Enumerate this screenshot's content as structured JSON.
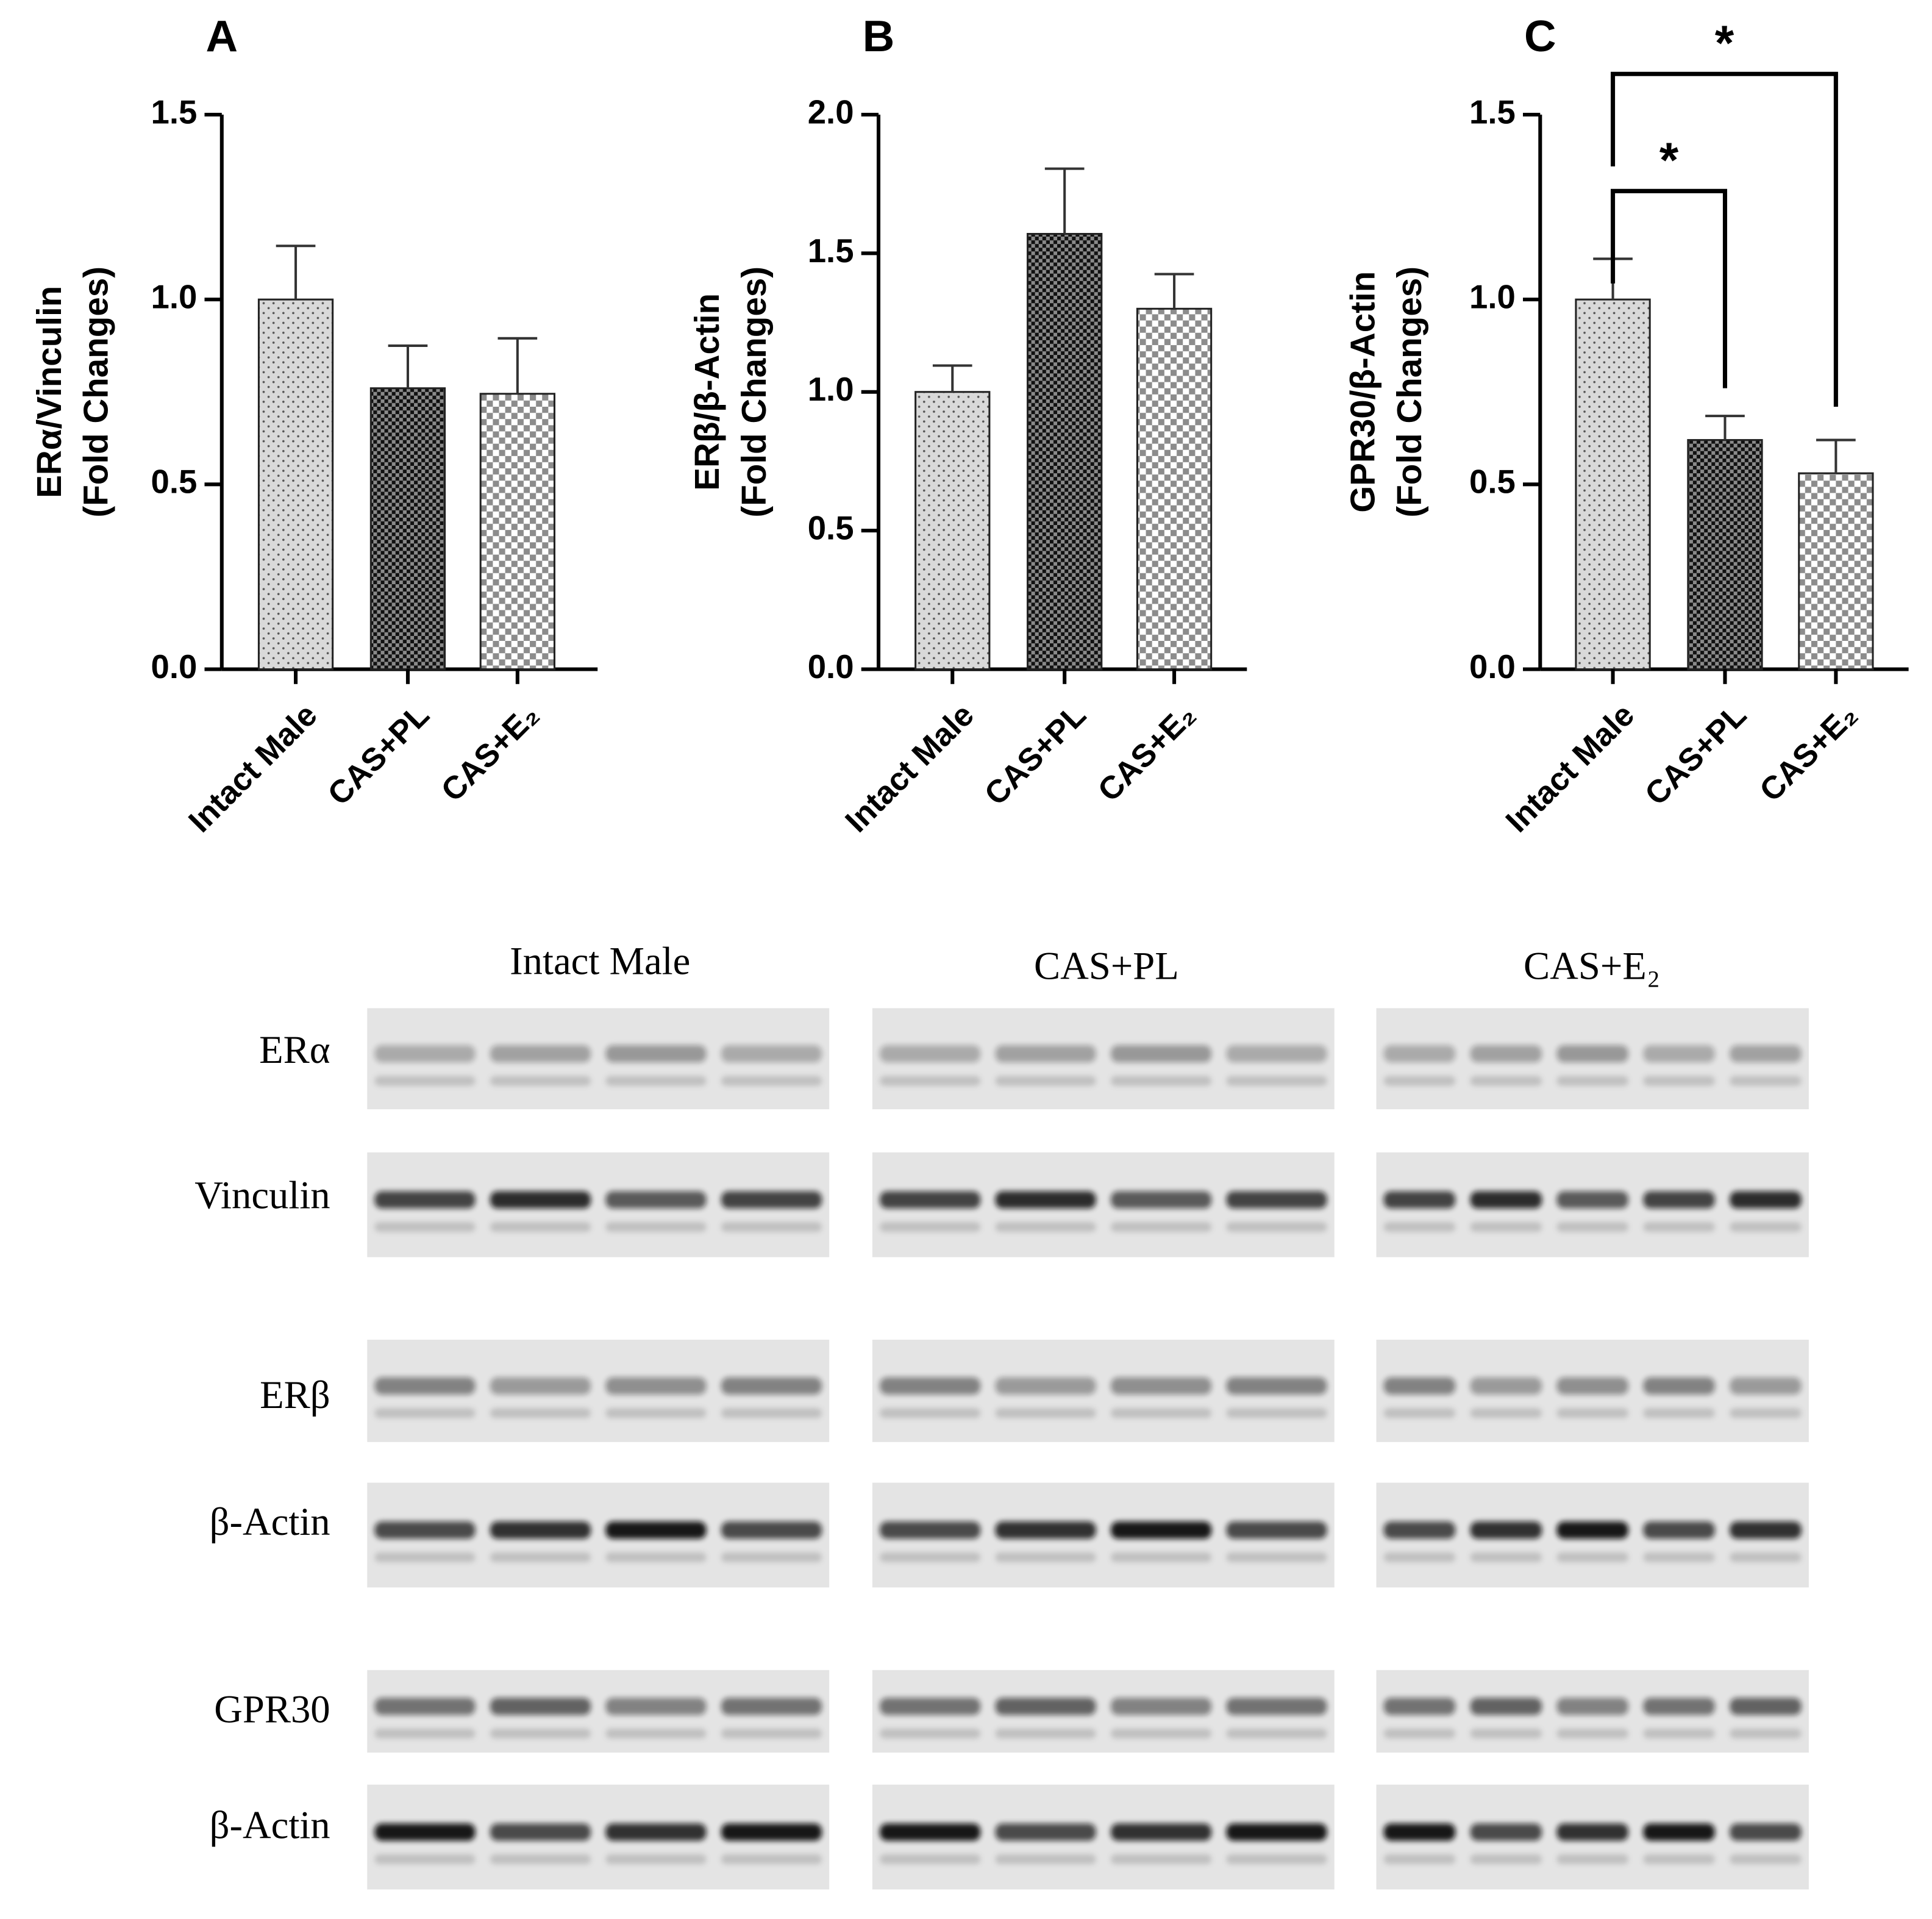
{
  "chart_data": [
    {
      "type": "bar",
      "title": "A",
      "ylabel": [
        "ERα/Vinculin",
        "(Fold Changes)"
      ],
      "categories": [
        "Intact Male",
        "CAS+PL",
        "CAS+E₂"
      ],
      "values": [
        1.0,
        0.76,
        0.745
      ],
      "errors": [
        0.145,
        0.115,
        0.15
      ],
      "ylim": [
        0,
        1.5
      ],
      "yticks": [
        {
          "value": 0,
          "label": "0.0"
        },
        0.5,
        {
          "value": 1,
          "label": "1.0"
        },
        1.5
      ]
    },
    {
      "type": "bar",
      "title": "B",
      "ylabel": [
        "ERβ/β-Actin",
        "(Fold Changes)"
      ],
      "categories": [
        "Intact Male",
        "CAS+PL",
        "CAS+E₂"
      ],
      "values": [
        1.0,
        1.57,
        1.3
      ],
      "errors": [
        0.095,
        0.235,
        0.125
      ],
      "ylim": [
        0,
        2.0
      ],
      "yticks": [
        {
          "value": 0,
          "label": "0.0"
        },
        0.5,
        {
          "value": 1,
          "label": "1.0"
        },
        1.5,
        {
          "value": 2,
          "label": "2.0"
        }
      ]
    },
    {
      "type": "bar",
      "title": "C",
      "ylabel": [
        "GPR30/β-Actin",
        "(Fold Changes)"
      ],
      "categories": [
        "Intact Male",
        "CAS+PL",
        "CAS+E₂"
      ],
      "values": [
        1.0,
        0.62,
        0.53
      ],
      "errors": [
        0.11,
        0.065,
        0.09
      ],
      "ylim": [
        0,
        1.5
      ],
      "yticks": [
        {
          "value": 0,
          "label": "0.0"
        },
        0.5,
        {
          "value": 1,
          "label": "1.0"
        },
        1.5
      ],
      "annotations": [
        "*",
        "*"
      ]
    }
  ],
  "blot": {
    "groups": [
      "Intact Male",
      "CAS+PL",
      "CAS+E₂"
    ],
    "rows": [
      "ERα",
      "Vinculin",
      "ERβ",
      "β-Actin",
      "GPR30",
      "β-Actin"
    ]
  }
}
